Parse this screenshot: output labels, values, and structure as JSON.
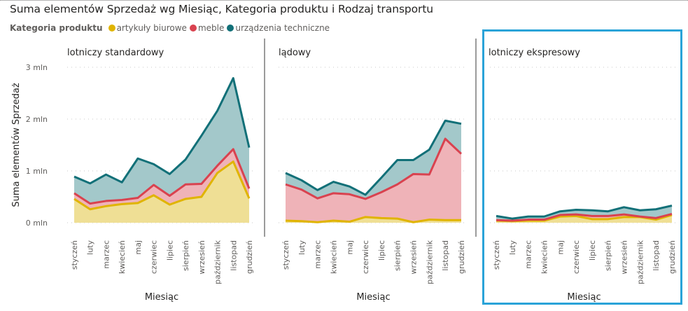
{
  "title": "Suma elementów Sprzedaż wg Miesiąc, Kategoria produktu i Rodzaj transportu",
  "legend": {
    "title": "Kategoria produktu",
    "items": [
      {
        "label": "artykuły biurowe",
        "color": "#E0B400"
      },
      {
        "label": "meble",
        "color": "#D9424F"
      },
      {
        "label": "urządzenia techniczne",
        "color": "#127078"
      }
    ]
  },
  "chart_data": {
    "type": "area",
    "stacked": true,
    "title": "Suma elementów Sprzedaż wg Miesiąc, Kategoria produktu i Rodzaj transportu",
    "xlabel": "Miesiąc",
    "ylabel": "Suma elementów Sprzedaż",
    "ylim": [
      0,
      3
    ],
    "y_unit": "mln",
    "y_ticks": [
      0,
      1,
      2,
      3
    ],
    "y_tick_labels": [
      "0 mln",
      "1 mln",
      "2 mln",
      "3 mln"
    ],
    "grid": true,
    "legend_position": "top-left",
    "categories": [
      "styczeń",
      "luty",
      "marzec",
      "kwiecień",
      "maj",
      "czerwiec",
      "lipiec",
      "sierpień",
      "wrzesień",
      "październik",
      "listopad",
      "grudzień"
    ],
    "fill_colors": {
      "artykuły biurowe": "#EFDF95",
      "meble": "#EFB3B8",
      "urządzenia techniczne": "#A3C8CA"
    },
    "panels": [
      {
        "name": "lotniczy standardowy",
        "series": [
          {
            "name": "artykuły biurowe",
            "values": [
              0.46,
              0.26,
              0.32,
              0.36,
              0.38,
              0.53,
              0.35,
              0.46,
              0.5,
              0.96,
              1.18,
              0.47
            ]
          },
          {
            "name": "meble",
            "values": [
              0.11,
              0.11,
              0.1,
              0.08,
              0.1,
              0.2,
              0.17,
              0.28,
              0.25,
              0.14,
              0.24,
              0.19
            ]
          },
          {
            "name": "urządzenia techniczne",
            "values": [
              0.32,
              0.39,
              0.51,
              0.34,
              0.76,
              0.4,
              0.42,
              0.48,
              0.93,
              1.06,
              1.37,
              0.79
            ]
          }
        ]
      },
      {
        "name": "lądowy",
        "series": [
          {
            "name": "artykuły biurowe",
            "values": [
              0.04,
              0.03,
              0.01,
              0.04,
              0.02,
              0.11,
              0.09,
              0.08,
              0.01,
              0.06,
              0.05,
              0.05
            ]
          },
          {
            "name": "meble",
            "values": [
              0.7,
              0.61,
              0.46,
              0.53,
              0.53,
              0.35,
              0.5,
              0.66,
              0.93,
              0.87,
              1.57,
              1.28
            ]
          },
          {
            "name": "urządzenia techniczne",
            "values": [
              0.22,
              0.18,
              0.16,
              0.22,
              0.15,
              0.08,
              0.28,
              0.47,
              0.27,
              0.48,
              0.35,
              0.58
            ]
          }
        ]
      },
      {
        "name": "lotniczy ekspresowy",
        "series": [
          {
            "name": "artykuły biurowe",
            "values": [
              0.04,
              0.03,
              0.04,
              0.04,
              0.12,
              0.13,
              0.07,
              0.07,
              0.11,
              0.11,
              0.06,
              0.15
            ]
          },
          {
            "name": "meble",
            "values": [
              0.01,
              0.01,
              0.02,
              0.02,
              0.03,
              0.03,
              0.06,
              0.06,
              0.05,
              0.01,
              0.03,
              0.02
            ]
          },
          {
            "name": "urządzenia techniczne",
            "values": [
              0.08,
              0.04,
              0.06,
              0.06,
              0.07,
              0.09,
              0.11,
              0.09,
              0.14,
              0.12,
              0.17,
              0.16
            ]
          }
        ]
      }
    ]
  }
}
